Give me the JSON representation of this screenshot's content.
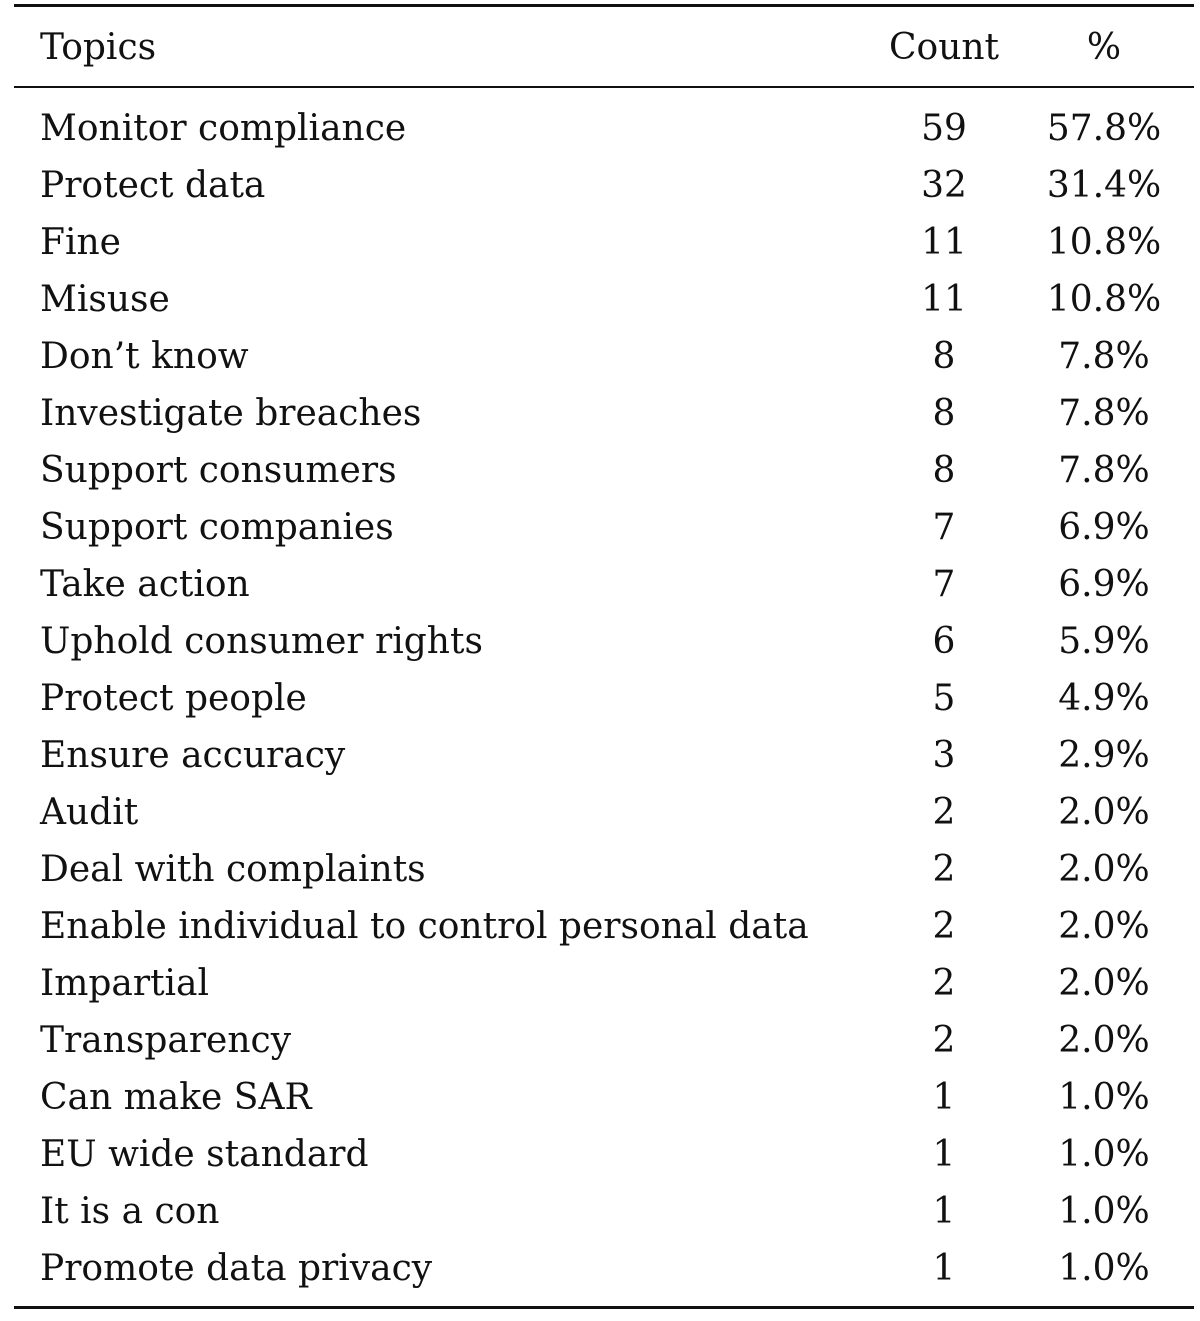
{
  "headers": {
    "topics": "Topics",
    "count": "Count",
    "percent": "%"
  },
  "rows": [
    {
      "topic": "Monitor compliance",
      "count": "59",
      "percent": "57.8%"
    },
    {
      "topic": "Protect data",
      "count": "32",
      "percent": "31.4%"
    },
    {
      "topic": "Fine",
      "count": "11",
      "percent": "10.8%"
    },
    {
      "topic": "Misuse",
      "count": "11",
      "percent": "10.8%"
    },
    {
      "topic": "Don’t know",
      "count": "8",
      "percent": "7.8%"
    },
    {
      "topic": "Investigate breaches",
      "count": "8",
      "percent": "7.8%"
    },
    {
      "topic": "Support consumers",
      "count": "8",
      "percent": "7.8%"
    },
    {
      "topic": "Support companies",
      "count": "7",
      "percent": "6.9%"
    },
    {
      "topic": "Take action",
      "count": "7",
      "percent": "6.9%"
    },
    {
      "topic": "Uphold consumer rights",
      "count": "6",
      "percent": "5.9%"
    },
    {
      "topic": "Protect people",
      "count": "5",
      "percent": "4.9%"
    },
    {
      "topic": "Ensure accuracy",
      "count": "3",
      "percent": "2.9%"
    },
    {
      "topic": "Audit",
      "count": "2",
      "percent": "2.0%"
    },
    {
      "topic": "Deal with complaints",
      "count": "2",
      "percent": "2.0%"
    },
    {
      "topic": "Enable individual to control personal data",
      "count": "2",
      "percent": "2.0%"
    },
    {
      "topic": "Impartial",
      "count": "2",
      "percent": "2.0%"
    },
    {
      "topic": "Transparency",
      "count": "2",
      "percent": "2.0%"
    },
    {
      "topic": "Can make SAR",
      "count": "1",
      "percent": "1.0%"
    },
    {
      "topic": "EU wide standard",
      "count": "1",
      "percent": "1.0%"
    },
    {
      "topic": "It is a con",
      "count": "1",
      "percent": "1.0%"
    },
    {
      "topic": "Promote data privacy",
      "count": "1",
      "percent": "1.0%"
    }
  ]
}
